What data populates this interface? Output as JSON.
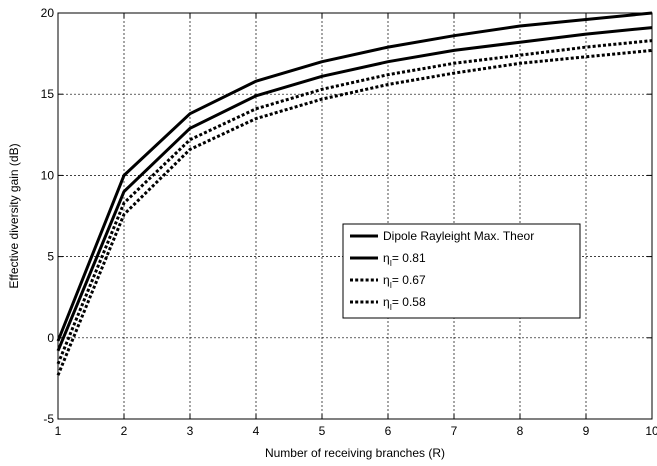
{
  "chart_data": {
    "type": "line",
    "title": "",
    "xlabel": "Number of receiving branches (R)",
    "ylabel": "Effective diversity gain (dB)",
    "xlim": [
      1,
      10
    ],
    "ylim": [
      -5,
      20
    ],
    "xticks": [
      1,
      2,
      3,
      4,
      5,
      6,
      7,
      8,
      9,
      10
    ],
    "yticks": [
      -5,
      0,
      5,
      10,
      15,
      20
    ],
    "grid": true,
    "legend_position": "center-right",
    "x": [
      1,
      2,
      3,
      4,
      5,
      6,
      7,
      8,
      9,
      10
    ],
    "series": [
      {
        "name": "Dipole Rayleight Max. Theor",
        "legend_symbol": "",
        "legend_subscript": "",
        "legend_value": "",
        "style": "solid",
        "values": [
          -0.2,
          10.0,
          13.8,
          15.8,
          17.0,
          17.9,
          18.6,
          19.2,
          19.6,
          20.0
        ]
      },
      {
        "name": "",
        "legend_symbol": "η",
        "legend_subscript": "I",
        "legend_value": "= 0.81",
        "style": "solid",
        "values": [
          -0.8,
          9.0,
          12.9,
          14.9,
          16.1,
          17.0,
          17.7,
          18.2,
          18.7,
          19.1
        ]
      },
      {
        "name": "",
        "legend_symbol": "η",
        "legend_subscript": "I",
        "legend_value": "= 0.67",
        "style": "dotted",
        "values": [
          -1.6,
          8.3,
          12.2,
          14.1,
          15.3,
          16.2,
          16.9,
          17.4,
          17.9,
          18.3
        ]
      },
      {
        "name": "",
        "legend_symbol": "η",
        "legend_subscript": "I",
        "legend_value": "= 0.58",
        "style": "dotted",
        "values": [
          -2.3,
          7.6,
          11.6,
          13.5,
          14.7,
          15.6,
          16.3,
          16.9,
          17.3,
          17.7
        ]
      }
    ]
  }
}
